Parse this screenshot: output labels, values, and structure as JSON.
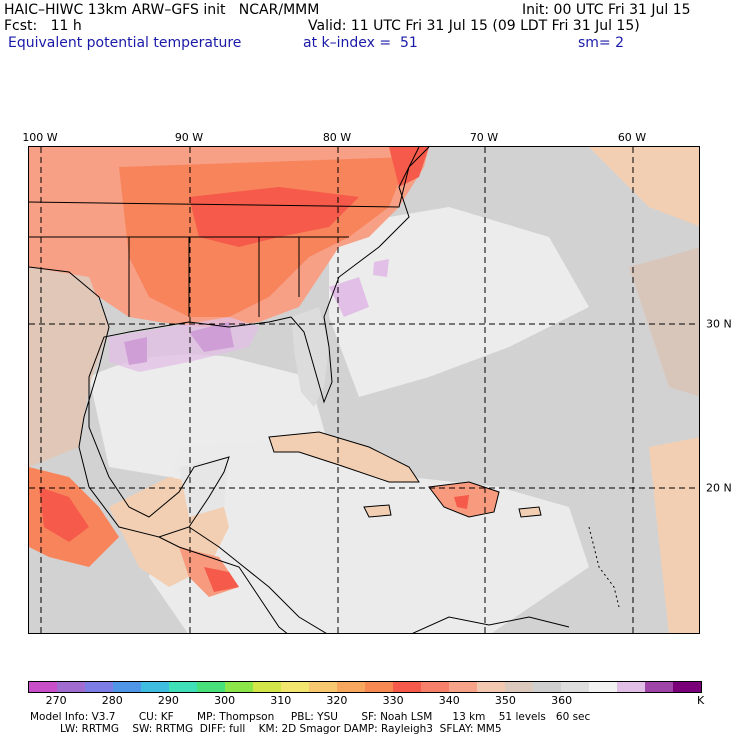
{
  "header": {
    "title": "HAIC–HIWC 13km ARW–GFS init   NCAR/MMM",
    "init": "Init: 00 UTC Fri 31 Jul 15",
    "fcst": "Fcst:   11 h",
    "valid": "Valid: 11 UTC Fri 31 Jul 15 (09 LDT Fri 31 Jul 15)",
    "field": "Equivalent potential temperature",
    "level": "at k–index =  51",
    "smooth": "sm= 2"
  },
  "map": {
    "lon_labels": [
      "100 W",
      "90 W",
      "80 W",
      "70 W",
      "60 W"
    ],
    "lat_labels": [
      "30 N",
      "20 N"
    ],
    "colors": {
      "ocean_grey": "#cfcfcf",
      "light_grey": "#e9e9e9",
      "tan": "#f2cfb2",
      "salmon": "#f79a7e",
      "orange": "#f8845c",
      "red": "#f55a4a",
      "lavender": "#e2bfe6",
      "purple": "#9b3fa8"
    }
  },
  "colorbar": {
    "colors": [
      "#c84fc8",
      "#a06ccf",
      "#7d7de6",
      "#4f96e8",
      "#3fbde0",
      "#3fe0b8",
      "#48e07a",
      "#8ce64a",
      "#d2e64a",
      "#f2e66e",
      "#f8c870",
      "#f7a85e",
      "#f78a52",
      "#f55a4a",
      "#f7806a",
      "#f7a38a",
      "#f2c9b0",
      "#dcc9bd",
      "#cfcfcf",
      "#dedede",
      "#f2f2f2",
      "#e2bfe6",
      "#a045a8",
      "#7a007a"
    ],
    "labels": [
      "270",
      "280",
      "290",
      "300",
      "310",
      "320",
      "330",
      "340",
      "350",
      "360"
    ],
    "unit": "K"
  },
  "model_info": {
    "line1": "Model Info: V3.7       CU: KF       MP: Thompson     PBL: YSU       SF: Noah LSM      13 km    51 levels   60 sec",
    "line2": "         LW: RRTMG    SW: RRTMG  DIFF: full    KM: 2D Smagor DAMP: Rayleigh3  SFLAY: MM5"
  }
}
